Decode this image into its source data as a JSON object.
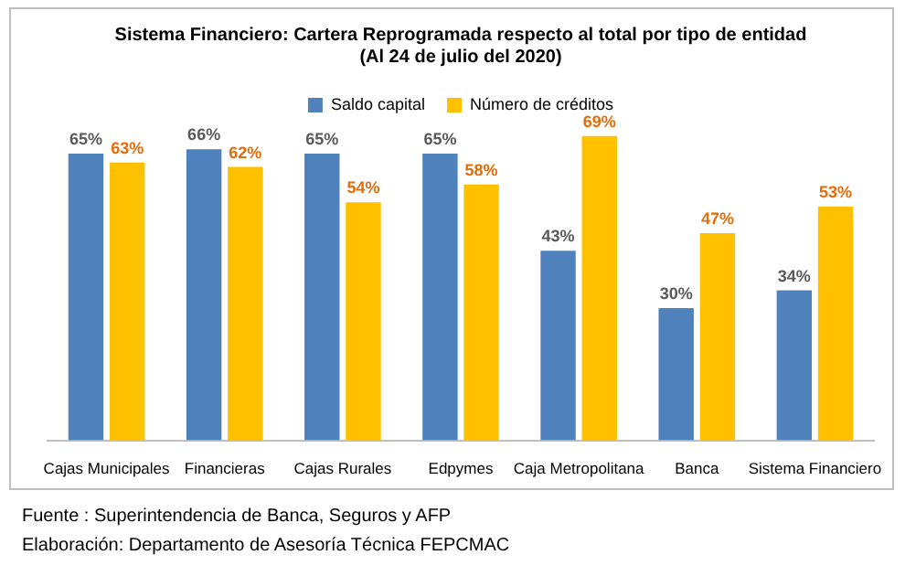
{
  "chart_data": {
    "type": "bar",
    "title": "Sistema Financiero: Cartera Reprogramada respecto al total por tipo de entidad",
    "subtitle": "(Al 24 de julio del 2020)",
    "categories": [
      "Cajas Municipales",
      "Financieras",
      "Cajas Rurales",
      "Edpymes",
      "Caja Metropolitana",
      "Banca",
      "Sistema Financiero"
    ],
    "series": [
      {
        "name": "Saldo capital",
        "color": "#4f81bd",
        "values": [
          65,
          66,
          65,
          65,
          43,
          30,
          34
        ],
        "value_labels": [
          "65%",
          "66%",
          "65%",
          "65%",
          "43%",
          "30%",
          "34%"
        ]
      },
      {
        "name": "Número de créditos",
        "color": "#ffc000",
        "values": [
          63,
          62,
          54,
          58,
          69,
          47,
          53
        ],
        "value_labels": [
          "63%",
          "62%",
          "54%",
          "58%",
          "69%",
          "47%",
          "53%"
        ]
      }
    ],
    "legend": "top",
    "grid": false,
    "tick_labels": "x",
    "annotations": [
      "Fuente : Superintendencia de Banca, Seguros y AFP",
      "Elaboración: Departamento de Asesoría Técnica FEPCMAC"
    ]
  }
}
